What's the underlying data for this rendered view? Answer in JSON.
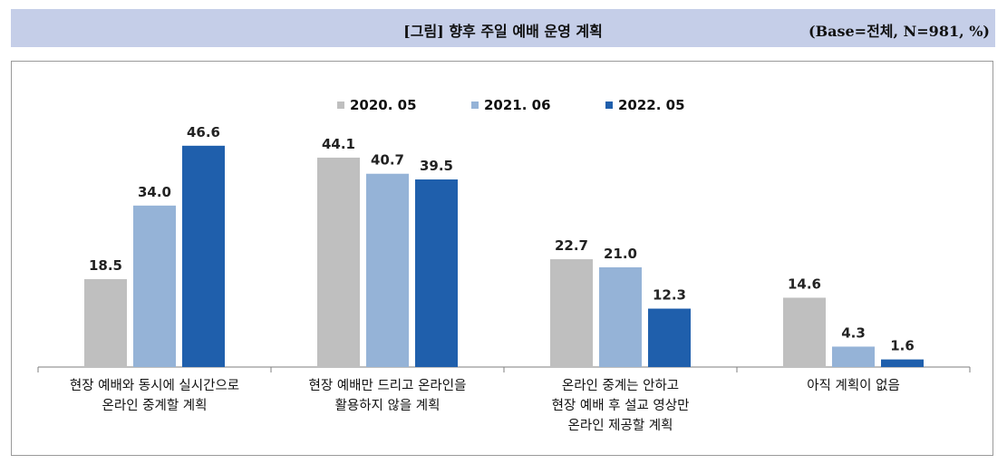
{
  "header": {
    "title": "[그림] 향후 주일 예배 운영 계획",
    "base": "(Base=전체, N=981, %)"
  },
  "chart_data": {
    "type": "bar",
    "categories": [
      [
        "현장 예배와 동시에 실시간으로",
        "온라인 중계할 계획"
      ],
      [
        "현장 예배만 드리고 온라인을",
        "활용하지 않을 계획"
      ],
      [
        "온라인 중계는 안하고",
        "현장 예배 후 설교 영상만",
        "온라인 제공할 계획"
      ],
      [
        "아직 계획이 없음"
      ]
    ],
    "series": [
      {
        "name": "2020. 05",
        "color": "#bfbfbf",
        "values": [
          18.5,
          44.1,
          22.7,
          14.6
        ]
      },
      {
        "name": "2021. 06",
        "color": "#95b3d7",
        "values": [
          34.0,
          40.7,
          21.0,
          4.3
        ]
      },
      {
        "name": "2022. 05",
        "color": "#1f5fac",
        "values": [
          46.6,
          39.5,
          12.3,
          1.6
        ]
      }
    ],
    "ylim": [
      0,
      50
    ],
    "legend_position": "top-center",
    "grid": false
  }
}
